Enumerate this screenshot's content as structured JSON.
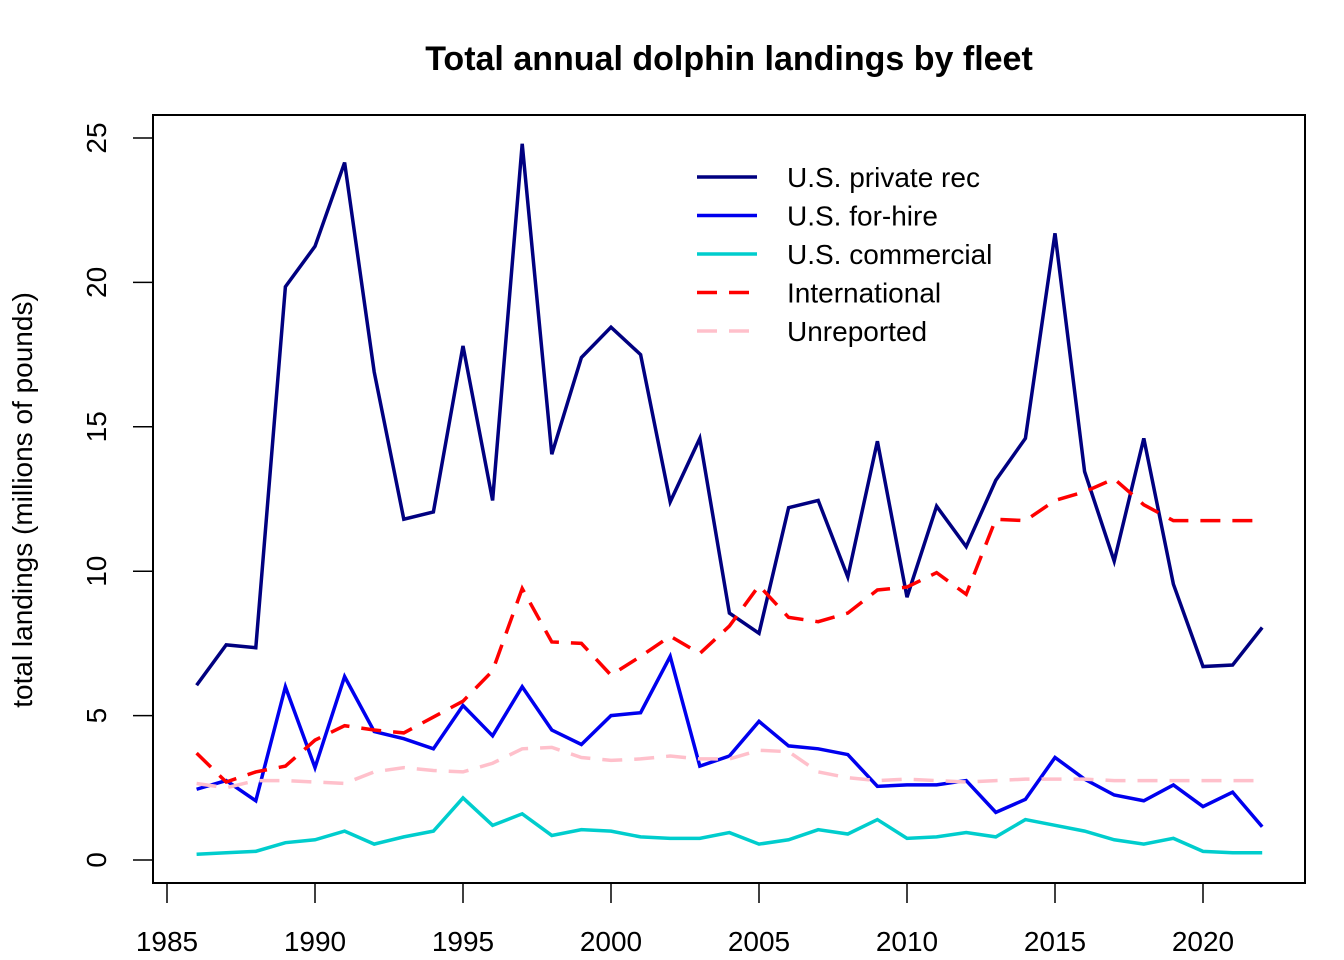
{
  "chart_data": {
    "type": "line",
    "title": "Total annual dolphin landings by fleet",
    "xlabel": "",
    "ylabel": "total landings (millions of pounds)",
    "xlim": [
      1985,
      2022
    ],
    "ylim": [
      0,
      25
    ],
    "xticks": [
      1985,
      1990,
      1995,
      2000,
      2005,
      2010,
      2015,
      2020
    ],
    "yticks": [
      0,
      5,
      10,
      15,
      20,
      25
    ],
    "grid": false,
    "legend_position": "top-right",
    "x": [
      1986,
      1987,
      1988,
      1989,
      1990,
      1991,
      1992,
      1993,
      1994,
      1995,
      1996,
      1997,
      1998,
      1999,
      2000,
      2001,
      2002,
      2003,
      2004,
      2005,
      2006,
      2007,
      2008,
      2009,
      2010,
      2011,
      2012,
      2013,
      2014,
      2015,
      2016,
      2017,
      2018,
      2019,
      2020,
      2021,
      2022
    ],
    "series": [
      {
        "name": "U.S. private rec",
        "color": "#000080",
        "dash": "solid",
        "values": [
          6.05,
          7.45,
          7.35,
          19.85,
          21.25,
          24.15,
          16.9,
          11.8,
          12.05,
          17.8,
          12.45,
          24.8,
          14.05,
          17.4,
          18.45,
          17.5,
          12.4,
          14.6,
          8.55,
          7.85,
          12.2,
          12.45,
          9.8,
          14.5,
          9.1,
          12.25,
          10.85,
          13.15,
          14.6,
          21.7,
          13.45,
          10.35,
          14.6,
          9.55,
          6.7,
          6.75,
          8.05
        ]
      },
      {
        "name": "U.S. for-hire",
        "color": "#0000ee",
        "dash": "solid",
        "values": [
          2.45,
          2.75,
          2.05,
          6.0,
          3.2,
          6.35,
          4.45,
          4.2,
          3.85,
          5.35,
          4.3,
          6.0,
          4.5,
          4.0,
          5.0,
          5.1,
          7.05,
          3.25,
          3.6,
          4.8,
          3.95,
          3.85,
          3.65,
          2.55,
          2.6,
          2.6,
          2.75,
          1.65,
          2.1,
          3.55,
          2.8,
          2.25,
          2.05,
          2.6,
          1.85,
          2.35,
          1.15
        ]
      },
      {
        "name": "U.S. commercial",
        "color": "#00cdcd",
        "dash": "solid",
        "values": [
          0.2,
          0.25,
          0.3,
          0.6,
          0.7,
          1.0,
          0.55,
          0.8,
          1.0,
          2.15,
          1.2,
          1.6,
          0.85,
          1.05,
          1.0,
          0.8,
          0.75,
          0.75,
          0.95,
          0.55,
          0.7,
          1.05,
          0.9,
          1.4,
          0.75,
          0.8,
          0.95,
          0.8,
          1.4,
          1.2,
          1.0,
          0.7,
          0.55,
          0.75,
          0.3,
          0.25,
          0.25
        ]
      },
      {
        "name": "International",
        "color": "#ff0000",
        "dash": "dashed",
        "values": [
          3.7,
          2.7,
          3.05,
          3.25,
          4.15,
          4.65,
          4.5,
          4.4,
          4.95,
          5.5,
          6.55,
          9.4,
          7.55,
          7.5,
          6.4,
          7.05,
          7.75,
          7.15,
          8.1,
          9.5,
          8.4,
          8.25,
          8.55,
          9.35,
          9.45,
          9.95,
          9.2,
          11.8,
          11.75,
          12.45,
          12.75,
          13.2,
          12.3,
          11.75,
          11.75,
          11.75,
          11.75
        ]
      },
      {
        "name": "Unreported",
        "color": "#ffc0cb",
        "dash": "dashed",
        "values": [
          2.65,
          2.5,
          2.75,
          2.75,
          2.7,
          2.65,
          3.05,
          3.2,
          3.1,
          3.05,
          3.35,
          3.85,
          3.9,
          3.55,
          3.45,
          3.5,
          3.6,
          3.5,
          3.5,
          3.8,
          3.75,
          3.05,
          2.85,
          2.75,
          2.8,
          2.75,
          2.7,
          2.75,
          2.8,
          2.8,
          2.8,
          2.75,
          2.75,
          2.75,
          2.75,
          2.75,
          2.75
        ]
      }
    ]
  }
}
